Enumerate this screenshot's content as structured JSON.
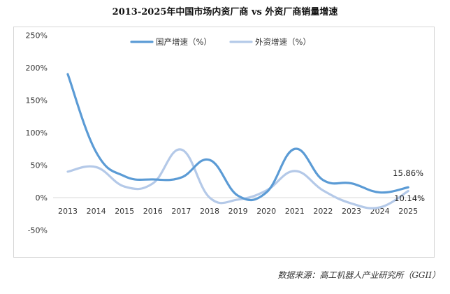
{
  "chart_data": {
    "type": "line",
    "title": "2013-2025年中国市场内资厂商 vs 外资厂商销量增速",
    "categories": [
      "2013",
      "2014",
      "2015",
      "2016",
      "2017",
      "2018",
      "2019",
      "2020",
      "2021",
      "2022",
      "2023",
      "2024",
      "2025"
    ],
    "yticks": [
      "250%",
      "200%",
      "150%",
      "100%",
      "50%",
      "0%",
      "-50%"
    ],
    "ytick_values": [
      250,
      200,
      150,
      100,
      50,
      0,
      -50
    ],
    "ylim": [
      -50,
      250
    ],
    "grid": false,
    "legend": "top-center",
    "series": [
      {
        "name": "国产增速（%）",
        "color": "#5b9bd5",
        "values": [
          190,
          70,
          33,
          28,
          31,
          58,
          3,
          8,
          75,
          27,
          22,
          8,
          15.86
        ]
      },
      {
        "name": "外资增速（%）",
        "color": "#b4c9e8",
        "values": [
          40,
          47,
          17,
          22,
          74,
          0,
          -3,
          11,
          41,
          11,
          -9,
          -15,
          10.14
        ]
      }
    ],
    "annotations": [
      "15.86%",
      "10.14%"
    ]
  },
  "source": "数据来源：高工机器人产业研究所（GGII）"
}
